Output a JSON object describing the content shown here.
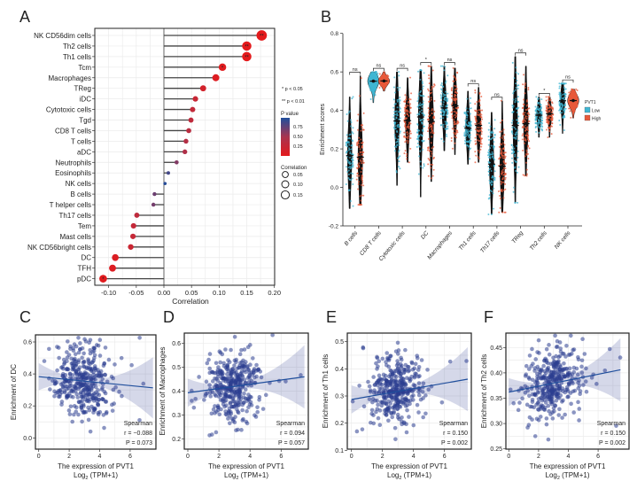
{
  "panel_labels": [
    "A",
    "B",
    "C",
    "D",
    "E",
    "F"
  ],
  "chart_data": [
    {
      "type": "lollipop",
      "xlabel": "Correlation",
      "xlim": [
        -0.125,
        0.2
      ],
      "xticks": [
        "-0.10",
        "-0.05",
        "0.00",
        "0.05",
        "0.10",
        "0.15",
        "0.20"
      ],
      "xtick_values": [
        -0.1,
        -0.05,
        0,
        0.05,
        0.1,
        0.15,
        0.2
      ],
      "grid": true,
      "rows": [
        {
          "label": "NK CD56dim cells",
          "r": 0.177,
          "p": 0.0003
        },
        {
          "label": "Th2 cells",
          "r": 0.15,
          "p": 0.002
        },
        {
          "label": "Th1 cells",
          "r": 0.15,
          "p": 0.002
        },
        {
          "label": "Tcm",
          "r": 0.106,
          "p": 0.03
        },
        {
          "label": "Macrophages",
          "r": 0.094,
          "p": 0.057
        },
        {
          "label": "TReg",
          "r": 0.071,
          "p": 0.15
        },
        {
          "label": "iDC",
          "r": 0.057,
          "p": 0.24
        },
        {
          "label": "Cytotoxic cells",
          "r": 0.052,
          "p": 0.28
        },
        {
          "label": "Tgd",
          "r": 0.049,
          "p": 0.31
        },
        {
          "label": "CD8 T cells",
          "r": 0.045,
          "p": 0.35
        },
        {
          "label": "T cells",
          "r": 0.04,
          "p": 0.4
        },
        {
          "label": "aDC",
          "r": 0.038,
          "p": 0.43
        },
        {
          "label": "Neutrophils",
          "r": 0.023,
          "p": 0.64
        },
        {
          "label": "Eosinophils",
          "r": 0.008,
          "p": 0.87
        },
        {
          "label": "NK cells",
          "r": 0.002,
          "p": 0.97
        },
        {
          "label": "B cells",
          "r": -0.017,
          "p": 0.72
        },
        {
          "label": "T helper cells",
          "r": -0.019,
          "p": 0.69
        },
        {
          "label": "Th17 cells",
          "r": -0.049,
          "p": 0.32
        },
        {
          "label": "Tem",
          "r": -0.055,
          "p": 0.27
        },
        {
          "label": "Mast cells",
          "r": -0.056,
          "p": 0.26
        },
        {
          "label": "NK CD56bright cells",
          "r": -0.06,
          "p": 0.22
        },
        {
          "label": "DC",
          "r": -0.088,
          "p": 0.073
        },
        {
          "label": "TFH",
          "r": -0.093,
          "p": 0.06
        },
        {
          "label": "pDC",
          "r": -0.11,
          "p": 0.024
        }
      ],
      "legend": {
        "sig1": "* p < 0.05",
        "sig2": "** p < 0.01",
        "color_title": "P value",
        "color_ticks": [
          "0.75",
          "0.50",
          "0.25"
        ],
        "size_title": "Correlation",
        "size_ticks": [
          "0.05",
          "0.10",
          "0.15"
        ],
        "color_low_p": "#e41a1c",
        "color_high_p": "#1f4e9c"
      }
    },
    {
      "type": "violin",
      "ylabel": "Enrichment scores",
      "ylim": [
        -0.2,
        0.8
      ],
      "yticks": [
        "-0.2",
        "0.0",
        "0.2",
        "0.4",
        "0.6",
        "0.8"
      ],
      "ytick_values": [
        -0.2,
        0,
        0.2,
        0.4,
        0.6,
        0.8
      ],
      "legend": {
        "title": "PVT1",
        "items": [
          "Low",
          "High"
        ],
        "colors": [
          "#3fb6d3",
          "#e8593a"
        ]
      },
      "categories": [
        "B cells",
        "CD8 T cells",
        "Cytotoxic cells",
        "DC",
        "Macrophages",
        "Th1 cells",
        "Th17 cells",
        "TReg",
        "Th2 cells",
        "NK cells"
      ],
      "significance": [
        "ns",
        "ns",
        "ns",
        "*",
        "ns",
        "ns",
        "ns",
        "ns",
        "*",
        "ns"
      ],
      "series": [
        {
          "name": "Low",
          "median": [
            0.165,
            0.552,
            0.345,
            0.366,
            0.413,
            0.308,
            0.121,
            0.322,
            0.375,
            0.45
          ],
          "min": [
            -0.11,
            0.44,
            0.01,
            -0.05,
            0.19,
            0.12,
            -0.14,
            -0.08,
            0.26,
            0.28
          ],
          "max": [
            0.47,
            0.6,
            0.6,
            0.61,
            0.63,
            0.5,
            0.39,
            0.68,
            0.47,
            0.54
          ]
        },
        {
          "name": "High",
          "median": [
            0.157,
            0.553,
            0.347,
            0.342,
            0.424,
            0.322,
            0.11,
            0.331,
            0.383,
            0.451
          ],
          "min": [
            -0.09,
            0.5,
            0.13,
            0.03,
            0.17,
            0.13,
            -0.13,
            0.06,
            0.26,
            0.36
          ],
          "max": [
            0.58,
            0.6,
            0.57,
            0.63,
            0.62,
            0.52,
            0.45,
            0.63,
            0.47,
            0.51
          ]
        }
      ]
    },
    {
      "type": "scatter",
      "ylabel": "Enrichment of DC",
      "xlabel": "The expression of PVT1",
      "xlabel2_base": "Log",
      "xlabel2_sub": "2",
      "xlabel2_rest": " (TPM+1)",
      "xticks": [
        "0",
        "2",
        "4",
        "6"
      ],
      "xtick_values": [
        0,
        2,
        4,
        6
      ],
      "yticks": [
        "0.0",
        "0.2",
        "0.4",
        "0.6"
      ],
      "ytick_values": [
        0,
        0.2,
        0.4,
        0.6
      ],
      "ylim": [
        -0.06,
        0.64
      ],
      "xlim": [
        -0.2,
        7.6
      ],
      "fit": {
        "x": [
          0,
          7.5
        ],
        "y": [
          0.383,
          0.313
        ]
      },
      "stats": {
        "method": "Spearman",
        "r": "r = −0.088",
        "p": "P = 0.073"
      },
      "point_color": "#2c3e8f"
    },
    {
      "type": "scatter",
      "ylabel": "Enrichment of Macrophages",
      "xlabel": "The expression of PVT1",
      "xlabel2_base": "Log",
      "xlabel2_sub": "2",
      "xlabel2_rest": " (TPM+1)",
      "xticks": [
        "0",
        "2",
        "4",
        "6"
      ],
      "xtick_values": [
        0,
        2,
        4,
        6
      ],
      "yticks": [
        "0.2",
        "0.3",
        "0.4",
        "0.5",
        "0.6"
      ],
      "ytick_values": [
        0.2,
        0.3,
        0.4,
        0.5,
        0.6
      ],
      "ylim": [
        0.16,
        0.645
      ],
      "xlim": [
        -0.2,
        7.6
      ],
      "fit": {
        "x": [
          0,
          7.5
        ],
        "y": [
          0.393,
          0.46
        ]
      },
      "stats": {
        "method": "Spearman",
        "r": "r = 0.094",
        "p": "P = 0.057"
      },
      "point_color": "#2c3e8f"
    },
    {
      "type": "scatter",
      "ylabel": "Enrichment of Th1 cells",
      "xlabel": "The expression of PVT1",
      "xlabel2_base": "Log",
      "xlabel2_sub": "2",
      "xlabel2_rest": " (TPM+1)",
      "xticks": [
        "0",
        "2",
        "4",
        "6"
      ],
      "xtick_values": [
        0,
        2,
        4,
        6
      ],
      "yticks": [
        "0.1",
        "0.2",
        "0.3",
        "0.4",
        "0.5"
      ],
      "ytick_values": [
        0.1,
        0.2,
        0.3,
        0.4,
        0.5
      ],
      "ylim": [
        0.1,
        0.53
      ],
      "xlim": [
        -0.2,
        7.6
      ],
      "fit": {
        "x": [
          0,
          7.5
        ],
        "y": [
          0.287,
          0.362
        ]
      },
      "stats": {
        "method": "Spearman",
        "r": "r = 0.150",
        "p": "P = 0.002"
      },
      "point_color": "#2c3e8f"
    },
    {
      "type": "scatter",
      "ylabel": "Enrichment of Th2 cells",
      "xlabel": "The expression of PVT1",
      "xlabel2_base": "Log",
      "xlabel2_sub": "2",
      "xlabel2_rest": " (TPM+1)",
      "xticks": [
        "0",
        "2",
        "4",
        "6"
      ],
      "xtick_values": [
        0,
        2,
        4,
        6
      ],
      "yticks": [
        "0.25",
        "0.30",
        "0.35",
        "0.40",
        "0.45"
      ],
      "ytick_values": [
        0.25,
        0.3,
        0.35,
        0.4,
        0.45
      ],
      "ylim": [
        0.25,
        0.478
      ],
      "xlim": [
        -0.2,
        7.6
      ],
      "fit": {
        "x": [
          0,
          7.5
        ],
        "y": [
          0.362,
          0.406
        ]
      },
      "stats": {
        "method": "Spearman",
        "r": "r = 0.150",
        "p": "P = 0.002"
      },
      "point_color": "#2c3e8f"
    }
  ]
}
